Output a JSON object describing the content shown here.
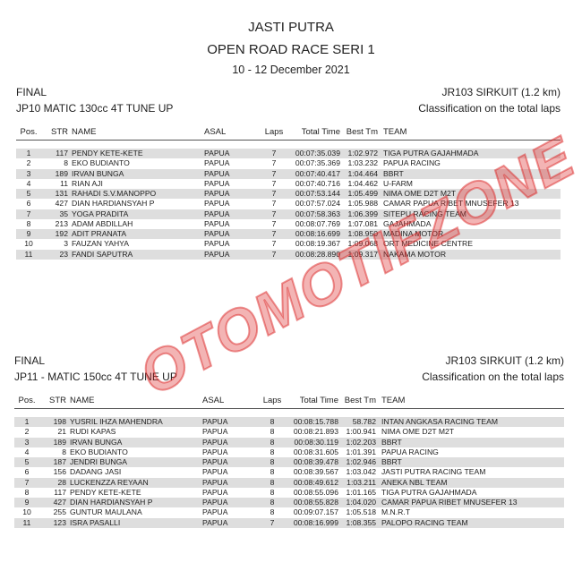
{
  "header": {
    "org": "JASTI PUTRA",
    "event": "OPEN ROAD RACE SERI 1",
    "date": "10 - 12 December 2021"
  },
  "columns": {
    "pos": "Pos.",
    "str": "STR",
    "name": "NAME",
    "asal": "ASAL",
    "laps": "Laps",
    "time": "Total Time",
    "best": "Best Tm",
    "team": "TEAM"
  },
  "watermark": "OTOMOTIFZONE",
  "watermark_color": "#dc2828",
  "sections": [
    {
      "stage": "FINAL",
      "circuit": "JR103 SIRKUIT (1.2 km)",
      "class": "JP10 MATIC 130cc 4T TUNE UP",
      "classification": "Classification on the total laps",
      "rows": [
        [
          "1",
          "117",
          "PENDY KETE-KETE",
          "PAPUA",
          "7",
          "00:07:35.039",
          "1:02.972",
          "TIGA PUTRA GAJAHMADA"
        ],
        [
          "2",
          "8",
          "EKO BUDIANTO",
          "PAPUA",
          "7",
          "00:07:35.369",
          "1:03.232",
          "PAPUA RACING"
        ],
        [
          "3",
          "189",
          "IRVAN BUNGA",
          "PAPUA",
          "7",
          "00:07:40.417",
          "1:04.464",
          "BBRT"
        ],
        [
          "4",
          "11",
          "RIAN AJI",
          "PAPUA",
          "7",
          "00:07:40.716",
          "1:04.462",
          "U-FARM"
        ],
        [
          "5",
          "131",
          "RAHADI S.V.MANOPPO",
          "PAPUA",
          "7",
          "00:07:53.144",
          "1:05.499",
          "NIMA OME D2T M2T"
        ],
        [
          "6",
          "427",
          "DIAN HARDIANSYAH P",
          "PAPUA",
          "7",
          "00:07:57.024",
          "1:05.988",
          "CAMAR PAPUA RIBET MNUSEFER 13"
        ],
        [
          "7",
          "35",
          "YOGA PRADITA",
          "PAPUA",
          "7",
          "00:07:58.363",
          "1:06.399",
          "SITEPU RACING TEAM"
        ],
        [
          "8",
          "213",
          "ADAM ABDILLAH",
          "PAPUA",
          "7",
          "00:08:07.769",
          "1:07.081",
          "GAJAHMADA"
        ],
        [
          "9",
          "192",
          "ADIT PRANATA",
          "PAPUA",
          "7",
          "00:08:16.699",
          "1:08.950",
          "MADINA MOTOR"
        ],
        [
          "10",
          "3",
          "FAUZAN YAHYA",
          "PAPUA",
          "7",
          "00:08:19.367",
          "1:09.068",
          "ORT MEDICINE CENTRE"
        ],
        [
          "11",
          "23",
          "FANDI SAPUTRA",
          "PAPUA",
          "7",
          "00:08:28.890",
          "1:09.317",
          "NAKAMA MOTOR"
        ]
      ]
    },
    {
      "stage": "FINAL",
      "circuit": "JR103 SIRKUIT (1.2 km)",
      "class": "JP11 - MATIC 150cc 4T TUNE UP",
      "classification": "Classification on the total laps",
      "rows": [
        [
          "1",
          "198",
          "YUSRIL IHZA MAHENDRA",
          "PAPUA",
          "8",
          "00:08:15.788",
          "58.782",
          "INTAN ANGKASA RACING TEAM"
        ],
        [
          "2",
          "21",
          "RUDI KAPAS",
          "PAPUA",
          "8",
          "00:08:21.893",
          "1:00.941",
          "NIMA OME D2T M2T"
        ],
        [
          "3",
          "189",
          "IRVAN BUNGA",
          "PAPUA",
          "8",
          "00:08:30.119",
          "1:02.203",
          "BBRT"
        ],
        [
          "4",
          "8",
          "EKO BUDIANTO",
          "PAPUA",
          "8",
          "00:08:31.605",
          "1:01.391",
          "PAPUA RACING"
        ],
        [
          "5",
          "187",
          "JENDRI BUNGA",
          "PAPUA",
          "8",
          "00:08:39.478",
          "1:02.946",
          "BBRT"
        ],
        [
          "6",
          "156",
          "DADANG JASI",
          "PAPUA",
          "8",
          "00:08:39.567",
          "1:03.042",
          "JASTI PUTRA RACING TEAM"
        ],
        [
          "7",
          "28",
          "LUCKENZZA REYAAN",
          "PAPUA",
          "8",
          "00:08:49.612",
          "1:03.211",
          "ANEKA NBL TEAM"
        ],
        [
          "8",
          "117",
          "PENDY KETE-KETE",
          "PAPUA",
          "8",
          "00:08:55.096",
          "1:01.165",
          "TIGA PUTRA GAJAHMADA"
        ],
        [
          "9",
          "427",
          "DIAN HARDIANSYAH P",
          "PAPUA",
          "8",
          "00:08:55.828",
          "1:04.020",
          "CAMAR PAPUA RIBET MNUSEFER 13"
        ],
        [
          "10",
          "255",
          "GUNTUR MAULANA",
          "PAPUA",
          "8",
          "00:09:07.157",
          "1:05.518",
          "M.N.R.T"
        ],
        [
          "11",
          "123",
          "ISRA PASALLI",
          "PAPUA",
          "7",
          "00:08:16.999",
          "1:08.355",
          "PALOPO RACING TEAM"
        ]
      ]
    }
  ]
}
